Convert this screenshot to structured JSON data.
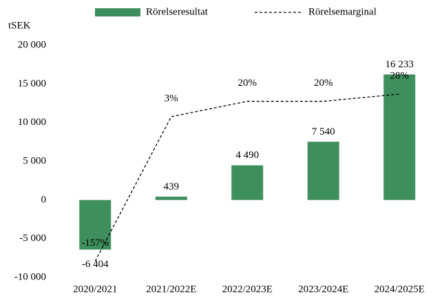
{
  "chart_data": {
    "type": "bar",
    "y_axis_label": "tSEK",
    "categories": [
      "2020/2021",
      "2021/2022E",
      "2022/2023E",
      "2023/2024E",
      "2024/2025E"
    ],
    "ylim": [
      -10000,
      20000
    ],
    "yticks": [
      {
        "value": -10000,
        "label": "-10 000"
      },
      {
        "value": -5000,
        "label": "-5 000"
      },
      0,
      {
        "value": 5000,
        "label": "5 000"
      },
      {
        "value": 10000,
        "label": "10 000"
      },
      {
        "value": 15000,
        "label": "15 000"
      },
      {
        "value": 20000,
        "label": "20 000"
      }
    ],
    "y2lim": [
      -175,
      82
    ],
    "series": [
      {
        "name": "Rörelseresultat",
        "type": "bar",
        "color": "#3f8f5e",
        "values": [
          -6404,
          439,
          4490,
          7540,
          16233
        ],
        "value_labels": [
          "-6 404",
          "439",
          "4 490",
          "7 540",
          "16 233"
        ]
      },
      {
        "name": "Rörelsemarginal",
        "type": "line",
        "axis": "y2",
        "color": "#000000",
        "dashed": true,
        "values": [
          -157,
          3,
          20,
          20,
          28
        ],
        "value_labels": [
          "-157%",
          "3%",
          "20%",
          "20%",
          "28%"
        ]
      }
    ]
  }
}
